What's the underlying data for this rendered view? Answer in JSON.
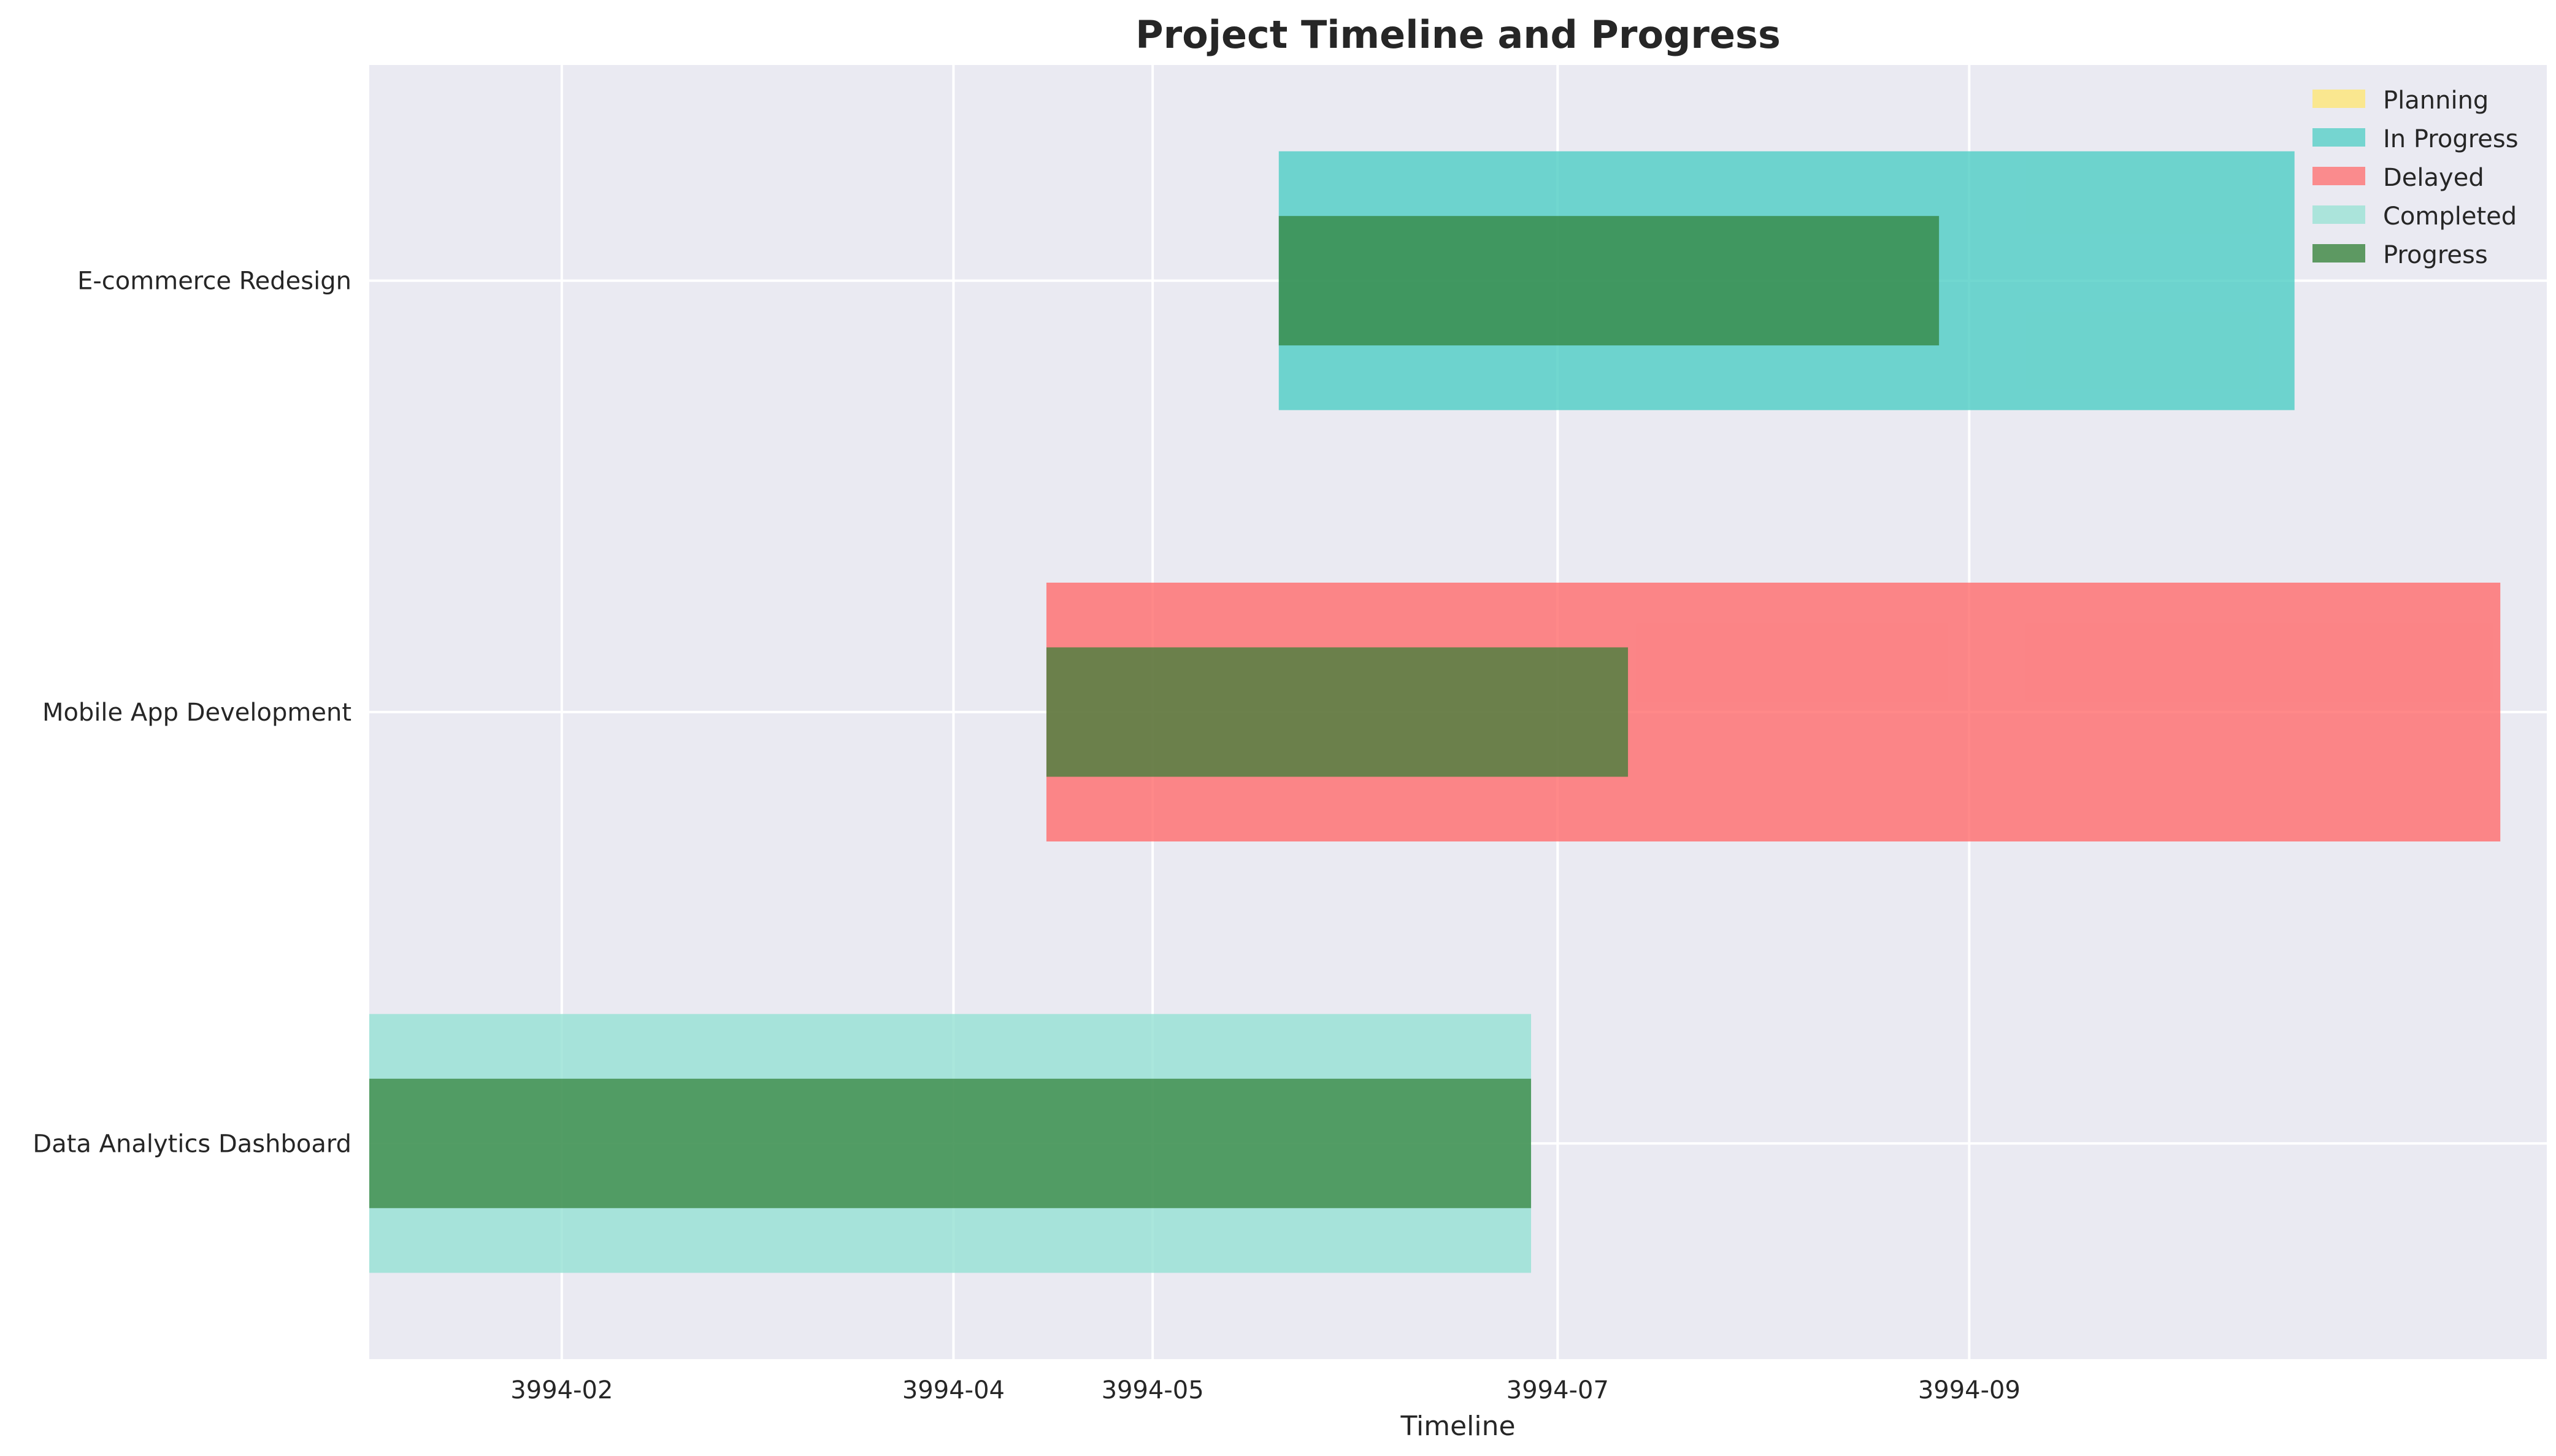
{
  "chart_data": {
    "type": "bar",
    "orientation": "horizontal",
    "title": "Project Timeline and Progress",
    "xlabel": "Timeline",
    "ylabel": "",
    "grid": true,
    "legend_position": "top-right",
    "x_tick_labels": [
      "3994-02",
      "3994-04",
      "3994-05",
      "3994-07",
      "3994-09"
    ],
    "x_tick_dates": [
      "3994-02-01",
      "3994-04-01",
      "3994-05-01",
      "3994-07-01",
      "3994-09-01"
    ],
    "xlim": [
      "3994-01-03",
      "3994-11-27"
    ],
    "status_colors": {
      "Planning": "#FFE66D",
      "In Progress": "#4ECDC4",
      "Delayed": "#FF6B6B",
      "Completed": "#95E1D3",
      "Progress": "#2E7D32"
    },
    "legend": [
      {
        "label": "Planning",
        "color": "#FFE66D"
      },
      {
        "label": "In Progress",
        "color": "#4ECDC4"
      },
      {
        "label": "Delayed",
        "color": "#FF6B6B"
      },
      {
        "label": "Completed",
        "color": "#95E1D3"
      },
      {
        "label": "Progress",
        "color": "#2E7D32"
      }
    ],
    "tasks": [
      {
        "name": "Data Analytics Dashboard",
        "start": "3994-01-03",
        "end": "3994-06-27",
        "progress": 100,
        "status": "Completed"
      },
      {
        "name": "Mobile App Development",
        "start": "3994-04-15",
        "end": "3994-11-20",
        "progress": 40,
        "status": "Delayed"
      },
      {
        "name": "E-commerce Redesign",
        "start": "3994-05-20",
        "end": "3994-10-20",
        "progress": 65,
        "status": "In Progress"
      }
    ]
  }
}
